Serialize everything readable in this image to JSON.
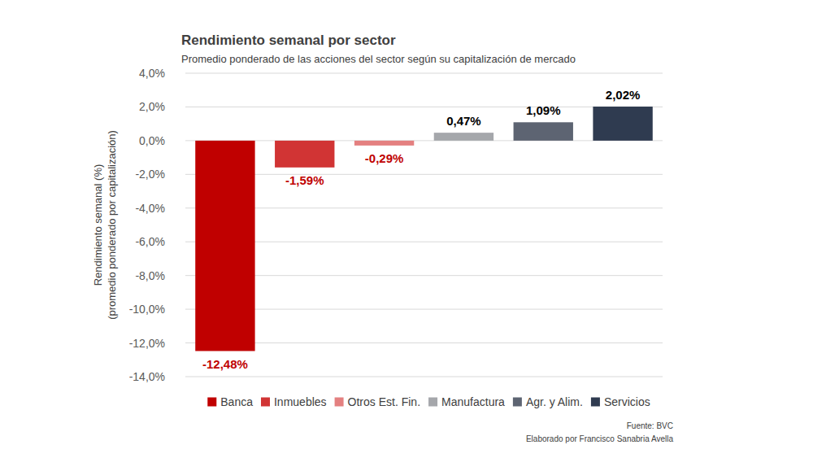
{
  "chart_data": {
    "type": "bar",
    "title": "Rendimiento semanal por sector",
    "subtitle": "Promedio ponderado de las acciones del sector según su capitalización de mercado",
    "y_label": [
      "Rendimiento semanal (%)",
      "(promedio ponderado por capitalización)"
    ],
    "categories": [
      "Banca",
      "Inmuebles",
      "Otros Est. Fin.",
      "Manufactura",
      "Agr. y Alim.",
      "Servicios"
    ],
    "values": [
      -12.48,
      -1.59,
      -0.29,
      0.47,
      1.09,
      2.02
    ],
    "value_labels": [
      "-12,48%",
      "-1,59%",
      "-0,29%",
      "0,47%",
      "1,09%",
      "2,02%"
    ],
    "colors": [
      "#c00000",
      "#d13434",
      "#e48080",
      "#a5a7ab",
      "#5d6472",
      "#2f3b50"
    ],
    "ylim": [
      -14,
      4
    ],
    "yticks": [
      {
        "value": -14,
        "label": "-14,0%"
      },
      {
        "value": -12,
        "label": "-12,0%"
      },
      {
        "value": -10,
        "label": "-10,0%"
      },
      {
        "value": -8,
        "label": "-8,0%"
      },
      {
        "value": -6,
        "label": "-6,0%"
      },
      {
        "value": -4,
        "label": "-4,0%"
      },
      {
        "value": -2,
        "label": "-2,0%"
      },
      {
        "value": 0,
        "label": "0,0%"
      },
      {
        "value": 2,
        "label": "2,0%"
      },
      {
        "value": 4,
        "label": "4,0%"
      }
    ],
    "grid": true,
    "legend": "bottom",
    "data_labels": true,
    "tick_labels": "y",
    "source": "Fuente: BVC",
    "credit": "Elaborado por Francisco Sanabria Avella"
  }
}
